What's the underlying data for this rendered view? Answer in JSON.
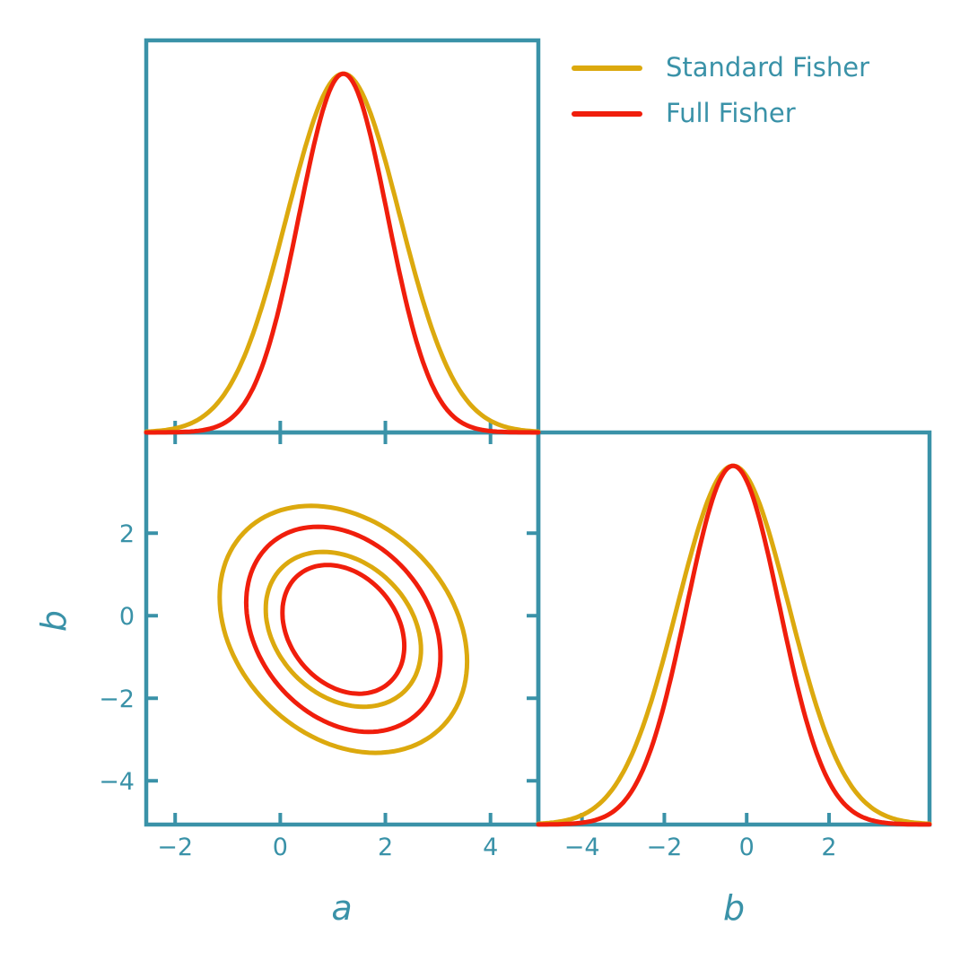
{
  "figure": {
    "kind": "fisher-forecast-corner-plot",
    "background": "#ffffff"
  },
  "legend": {
    "position": "top-right",
    "entries": [
      {
        "label": "Standard Fisher",
        "color": "#DCA90E"
      },
      {
        "label": "Full Fisher",
        "color": "#F01E0C"
      }
    ]
  },
  "chart_data": {
    "type": "corner-plot",
    "grid": false,
    "axis_color": "#3A92A8",
    "text_color": "#3A92A8",
    "legend_position": "top-right",
    "parameters": [
      {
        "name": "a",
        "range": [
          -2.55,
          4.91
        ],
        "ticks": [
          -2,
          0,
          2,
          4
        ],
        "tick_labels": [
          "−2",
          "0",
          "2",
          "4"
        ]
      },
      {
        "name": "b",
        "range": [
          -5.06,
          4.44
        ],
        "ticks": [
          -4,
          -2,
          0,
          2
        ],
        "tick_labels": [
          "−4",
          "−2",
          "0",
          "2"
        ]
      }
    ],
    "series": [
      {
        "name": "Standard Fisher",
        "color": "#DCA90E",
        "mean": {
          "a": 1.2,
          "b": -0.33
        },
        "sigma": {
          "a": 1.07,
          "b": 1.36
        },
        "correlation_ab": -0.26
      },
      {
        "name": "Full Fisher",
        "color": "#F01E0C",
        "mean": {
          "a": 1.2,
          "b": -0.33
        },
        "sigma": {
          "a": 0.84,
          "b": 1.13
        },
        "correlation_ab": -0.26
      }
    ],
    "contour_levels": [
      1.38,
      2.2
    ],
    "marginal_peak_fraction": 0.915,
    "line_width": 5
  }
}
